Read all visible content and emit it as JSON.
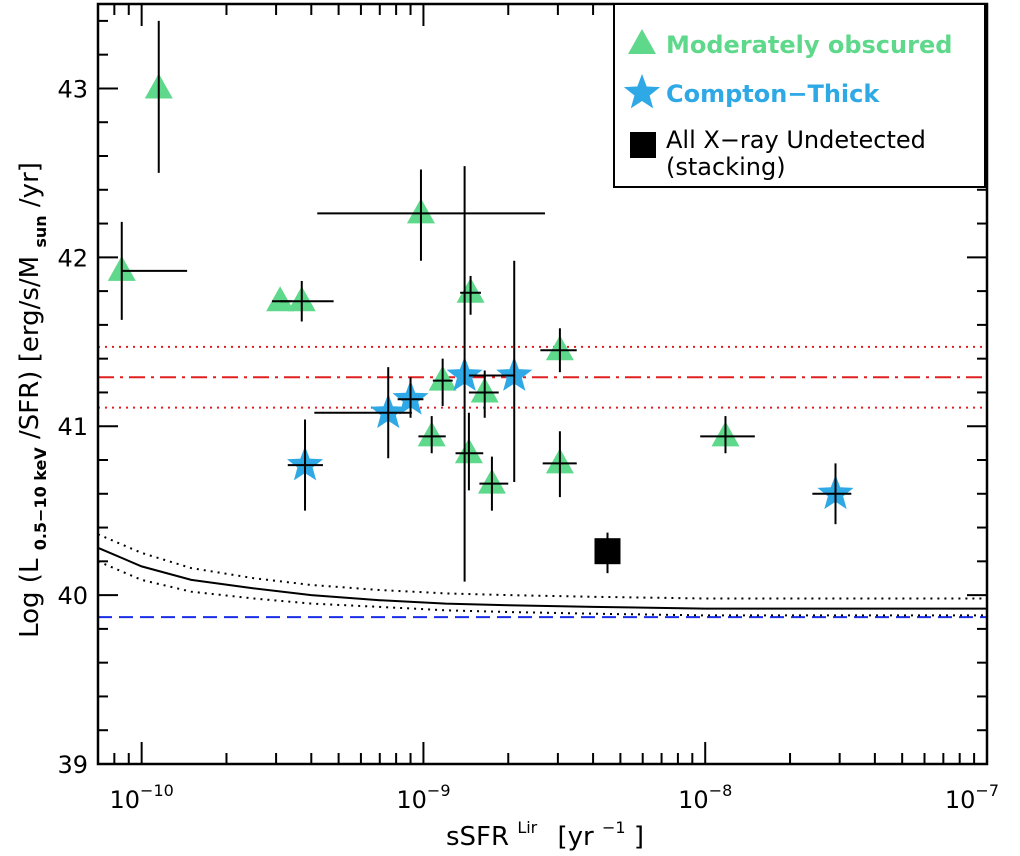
{
  "chart_data": {
    "type": "scatter",
    "xscale": "log",
    "xlim": [
      7e-11,
      1e-07
    ],
    "ylim": [
      39,
      43.5
    ],
    "xlabel": {
      "main": "sSFR",
      "sup1": "Lir",
      "unit_open": "[yr",
      "unit_sup": "−1",
      "unit_close": "]"
    },
    "ylabel": {
      "p1": "Log (L",
      "sub1": "0.5−10 keV",
      "p2": "/SFR) [erg/s/M",
      "sub2": "sun",
      "p3": "/yr]"
    },
    "x_ticks": [
      {
        "value": 1e-10,
        "base": "10",
        "exp": "−10"
      },
      {
        "value": 1e-09,
        "base": "10",
        "exp": "−9"
      },
      {
        "value": 1e-08,
        "base": "10",
        "exp": "−8"
      },
      {
        "value": 1e-07,
        "base": "10",
        "exp": "−7"
      }
    ],
    "y_ticks": [
      {
        "value": 39,
        "label": "39"
      },
      {
        "value": 40,
        "label": "40"
      },
      {
        "value": 41,
        "label": "41"
      },
      {
        "value": 42,
        "label": "42"
      },
      {
        "value": 43,
        "label": "43"
      }
    ],
    "legend": {
      "position": "top-right",
      "entries": [
        {
          "marker": "triangle",
          "label": "Moderately obscured",
          "color": "#5ed88a"
        },
        {
          "marker": "star",
          "label": "Compton−Thick",
          "color": "#2fa8e6"
        },
        {
          "marker": "square",
          "label": "All X−ray Undetected",
          "label2": "(stacking)",
          "color": "#000000"
        }
      ]
    },
    "series": [
      {
        "name": "Moderately obscured",
        "marker": "triangle",
        "color": "#5ed88a",
        "points": [
          {
            "x": 1.15e-10,
            "y": 43.0,
            "xlo": 1.15e-10,
            "xhi": 1.15e-10,
            "ylo": 42.5,
            "yhi": 43.4
          },
          {
            "x": 8.5e-11,
            "y": 41.92,
            "xlo": 8.5e-11,
            "xhi": 1.45e-10,
            "ylo": 41.63,
            "yhi": 42.21
          },
          {
            "x": 3.1e-10,
            "y": 41.74,
            "xlo": 2.9e-10,
            "xhi": 3.4e-10,
            "ylo": 41.74,
            "yhi": 41.74
          },
          {
            "x": 3.7e-10,
            "y": 41.74,
            "xlo": 3.1e-10,
            "xhi": 4.8e-10,
            "ylo": 41.62,
            "yhi": 41.86
          },
          {
            "x": 9.8e-10,
            "y": 42.26,
            "xlo": 4.2e-10,
            "xhi": 2.7e-09,
            "ylo": 41.98,
            "yhi": 42.52
          },
          {
            "x": 1.47e-09,
            "y": 41.79,
            "xlo": 1.35e-09,
            "xhi": 1.6e-09,
            "ylo": 41.66,
            "yhi": 41.89
          },
          {
            "x": 3.05e-09,
            "y": 41.45,
            "xlo": 2.6e-09,
            "xhi": 3.5e-09,
            "ylo": 41.32,
            "yhi": 41.58
          },
          {
            "x": 1.17e-09,
            "y": 41.27,
            "xlo": 1.08e-09,
            "xhi": 1.27e-09,
            "ylo": 41.12,
            "yhi": 41.4
          },
          {
            "x": 1.65e-09,
            "y": 41.2,
            "xlo": 1.45e-09,
            "xhi": 1.85e-09,
            "ylo": 41.05,
            "yhi": 41.33
          },
          {
            "x": 1.07e-09,
            "y": 40.94,
            "xlo": 9.6e-10,
            "xhi": 1.2e-09,
            "ylo": 40.84,
            "yhi": 41.06
          },
          {
            "x": 1.45e-09,
            "y": 40.84,
            "xlo": 1.3e-09,
            "xhi": 1.63e-09,
            "ylo": 40.62,
            "yhi": 41.08
          },
          {
            "x": 1.75e-09,
            "y": 40.66,
            "xlo": 1.58e-09,
            "xhi": 2e-09,
            "ylo": 40.5,
            "yhi": 40.82
          },
          {
            "x": 3.05e-09,
            "y": 40.78,
            "xlo": 2.65e-09,
            "xhi": 3.5e-09,
            "ylo": 40.58,
            "yhi": 40.97
          },
          {
            "x": 1.18e-08,
            "y": 40.94,
            "xlo": 9.6e-09,
            "xhi": 1.5e-08,
            "ylo": 40.84,
            "yhi": 41.06
          }
        ]
      },
      {
        "name": "Compton−Thick",
        "marker": "star",
        "color": "#2fa8e6",
        "points": [
          {
            "x": 7.5e-10,
            "y": 41.08,
            "xlo": 4.1e-10,
            "xhi": 9.1e-10,
            "ylo": 40.81,
            "yhi": 41.35
          },
          {
            "x": 9e-10,
            "y": 41.16,
            "xlo": 8.1e-10,
            "xhi": 1e-09,
            "ylo": 41.05,
            "yhi": 41.29
          },
          {
            "x": 1.4e-09,
            "y": 41.3,
            "xlo": 1.4e-09,
            "xhi": 1.4e-09,
            "ylo": 40.08,
            "yhi": 42.54
          },
          {
            "x": 2.1e-09,
            "y": 41.3,
            "xlo": 1.45e-09,
            "xhi": 2.1e-09,
            "ylo": 40.67,
            "yhi": 41.98
          },
          {
            "x": 3.8e-10,
            "y": 40.77,
            "xlo": 3.3e-10,
            "xhi": 4.4e-10,
            "ylo": 40.5,
            "yhi": 41.04
          },
          {
            "x": 2.9e-08,
            "y": 40.6,
            "xlo": 2.4e-08,
            "xhi": 3.3e-08,
            "ylo": 40.42,
            "yhi": 40.78
          }
        ]
      },
      {
        "name": "All X−ray Undetected (stacking)",
        "marker": "square",
        "color": "#000000",
        "points": [
          {
            "x": 4.5e-09,
            "y": 40.26,
            "xlo": 4.5e-09,
            "xhi": 4.5e-09,
            "ylo": 40.13,
            "yhi": 40.37
          }
        ]
      }
    ],
    "hlines": [
      {
        "y": 41.29,
        "style": "dashdot",
        "color": "#e02020"
      },
      {
        "y": 41.47,
        "style": "dotted",
        "color": "#e02020"
      },
      {
        "y": 41.11,
        "style": "dotted",
        "color": "#e02020"
      },
      {
        "y": 39.87,
        "style": "dashed",
        "color": "#1a2ee6"
      }
    ],
    "curves": [
      {
        "style": "solid",
        "color": "#000000",
        "x": [
          7e-11,
          1e-10,
          1.5e-10,
          2.5e-10,
          4e-10,
          7e-10,
          1.2e-09,
          2e-09,
          4e-09,
          1e-08,
          3e-08,
          1e-07
        ],
        "y": [
          40.28,
          40.17,
          40.09,
          40.04,
          40.0,
          39.97,
          39.95,
          39.94,
          39.93,
          39.92,
          39.92,
          39.92
        ]
      },
      {
        "style": "dotted",
        "color": "#000000",
        "x": [
          7e-11,
          1e-10,
          1.5e-10,
          2.5e-10,
          4e-10,
          7e-10,
          1.2e-09,
          2e-09,
          4e-09,
          1e-08,
          3e-08,
          1e-07
        ],
        "y": [
          40.36,
          40.25,
          40.16,
          40.1,
          40.06,
          40.03,
          40.01,
          40.0,
          39.99,
          39.98,
          39.98,
          39.98
        ]
      },
      {
        "style": "dotted",
        "color": "#000000",
        "x": [
          7e-11,
          1e-10,
          1.5e-10,
          2.5e-10,
          4e-10,
          7e-10,
          1.2e-09,
          2e-09,
          4e-09,
          1e-08,
          3e-08,
          1e-07
        ],
        "y": [
          40.2,
          40.09,
          40.02,
          39.98,
          39.95,
          39.93,
          39.91,
          39.9,
          39.89,
          39.88,
          39.88,
          39.88
        ]
      }
    ]
  }
}
